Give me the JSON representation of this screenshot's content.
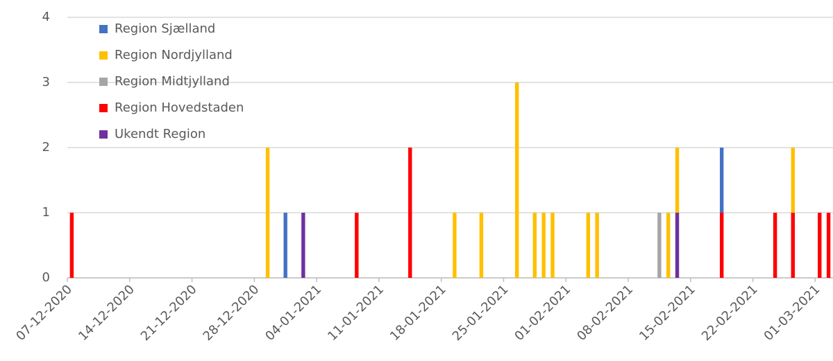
{
  "chart_data": {
    "type": "stacked_bar",
    "categories": [
      "07-12-2020",
      null,
      null,
      null,
      null,
      null,
      null,
      "14-12-2020",
      null,
      null,
      null,
      null,
      null,
      null,
      "21-12-2020",
      null,
      null,
      null,
      null,
      null,
      null,
      "28-12-2020",
      null,
      null,
      null,
      null,
      null,
      null,
      "04-01-2021",
      null,
      null,
      null,
      null,
      null,
      null,
      "11-01-2021",
      null,
      null,
      null,
      null,
      null,
      null,
      "18-01-2021",
      null,
      null,
      null,
      null,
      null,
      null,
      "25-01-2021",
      null,
      null,
      null,
      null,
      null,
      null,
      "01-02-2021",
      null,
      null,
      null,
      null,
      null,
      null,
      "08-02-2021",
      null,
      null,
      null,
      null,
      null,
      null,
      "15-02-2021",
      null,
      null,
      null,
      null,
      null,
      null,
      "22-02-2021",
      null,
      null,
      null,
      null,
      null,
      null,
      "01-03-2021",
      null
    ],
    "series": [
      {
        "name": "Region Sjælland",
        "color": "#4472c4",
        "values": [
          0,
          0,
          0,
          0,
          0,
          0,
          0,
          0,
          0,
          0,
          0,
          0,
          0,
          0,
          0,
          0,
          0,
          0,
          0,
          0,
          0,
          0,
          0,
          0,
          1,
          0,
          0,
          0,
          0,
          0,
          0,
          0,
          0,
          0,
          0,
          0,
          0,
          0,
          0,
          0,
          0,
          0,
          0,
          0,
          0,
          0,
          0,
          0,
          0,
          0,
          0,
          0,
          0,
          0,
          0,
          0,
          0,
          0,
          0,
          0,
          0,
          0,
          0,
          0,
          0,
          0,
          0,
          0,
          0,
          0,
          0,
          0,
          0,
          1,
          0,
          0,
          0,
          0,
          0,
          0,
          0,
          0,
          0,
          0,
          0,
          0
        ]
      },
      {
        "name": "Region Nordjylland",
        "color": "#ffc000",
        "values": [
          0,
          0,
          0,
          0,
          0,
          0,
          0,
          0,
          0,
          0,
          0,
          0,
          0,
          0,
          0,
          0,
          0,
          0,
          0,
          0,
          0,
          0,
          2,
          0,
          0,
          0,
          0,
          0,
          0,
          0,
          0,
          0,
          0,
          0,
          0,
          0,
          0,
          0,
          0,
          0,
          0,
          0,
          0,
          1,
          0,
          0,
          1,
          0,
          0,
          0,
          3,
          0,
          1,
          1,
          1,
          0,
          0,
          0,
          1,
          1,
          0,
          0,
          0,
          0,
          0,
          0,
          0,
          1,
          1,
          0,
          0,
          0,
          0,
          0,
          0,
          0,
          0,
          0,
          0,
          0,
          0,
          1,
          0,
          0,
          0,
          0
        ]
      },
      {
        "name": "Region Midtjylland",
        "color": "#a5a5a5",
        "values": [
          0,
          0,
          0,
          0,
          0,
          0,
          0,
          0,
          0,
          0,
          0,
          0,
          0,
          0,
          0,
          0,
          0,
          0,
          0,
          0,
          0,
          0,
          0,
          0,
          0,
          0,
          0,
          0,
          0,
          0,
          0,
          0,
          0,
          0,
          0,
          0,
          0,
          0,
          0,
          0,
          0,
          0,
          0,
          0,
          0,
          0,
          0,
          0,
          0,
          0,
          0,
          0,
          0,
          0,
          0,
          0,
          0,
          0,
          0,
          0,
          0,
          0,
          0,
          0,
          0,
          0,
          1,
          0,
          0,
          0,
          0,
          0,
          0,
          0,
          0,
          0,
          0,
          0,
          0,
          0,
          0,
          0,
          0,
          0,
          0,
          0
        ]
      },
      {
        "name": "Region Hovedstaden",
        "color": "#ff0000",
        "values": [
          1,
          0,
          0,
          0,
          0,
          0,
          0,
          0,
          0,
          0,
          0,
          0,
          0,
          0,
          0,
          0,
          0,
          0,
          0,
          0,
          0,
          0,
          0,
          0,
          0,
          0,
          0,
          0,
          0,
          0,
          0,
          0,
          1,
          0,
          0,
          0,
          0,
          0,
          2,
          0,
          0,
          0,
          0,
          0,
          0,
          0,
          0,
          0,
          0,
          0,
          0,
          0,
          0,
          0,
          0,
          0,
          0,
          0,
          0,
          0,
          0,
          0,
          0,
          0,
          0,
          0,
          0,
          0,
          0,
          0,
          0,
          0,
          0,
          1,
          0,
          0,
          0,
          0,
          0,
          1,
          0,
          1,
          0,
          0,
          1,
          1
        ]
      },
      {
        "name": "Ukendt Region",
        "color": "#7030a0",
        "values": [
          0,
          0,
          0,
          0,
          0,
          0,
          0,
          0,
          0,
          0,
          0,
          0,
          0,
          0,
          0,
          0,
          0,
          0,
          0,
          0,
          0,
          0,
          0,
          0,
          0,
          0,
          1,
          0,
          0,
          0,
          0,
          0,
          0,
          0,
          0,
          0,
          0,
          0,
          0,
          0,
          0,
          0,
          0,
          0,
          0,
          0,
          0,
          0,
          0,
          0,
          0,
          0,
          0,
          0,
          0,
          0,
          0,
          0,
          0,
          0,
          0,
          0,
          0,
          0,
          0,
          0,
          0,
          0,
          1,
          0,
          0,
          0,
          0,
          0,
          0,
          0,
          0,
          0,
          0,
          0,
          0,
          0,
          0,
          0,
          0,
          0
        ]
      }
    ],
    "ylim": [
      0,
      4
    ],
    "yticks": [
      0,
      1,
      2,
      3,
      4
    ],
    "grid": true
  }
}
